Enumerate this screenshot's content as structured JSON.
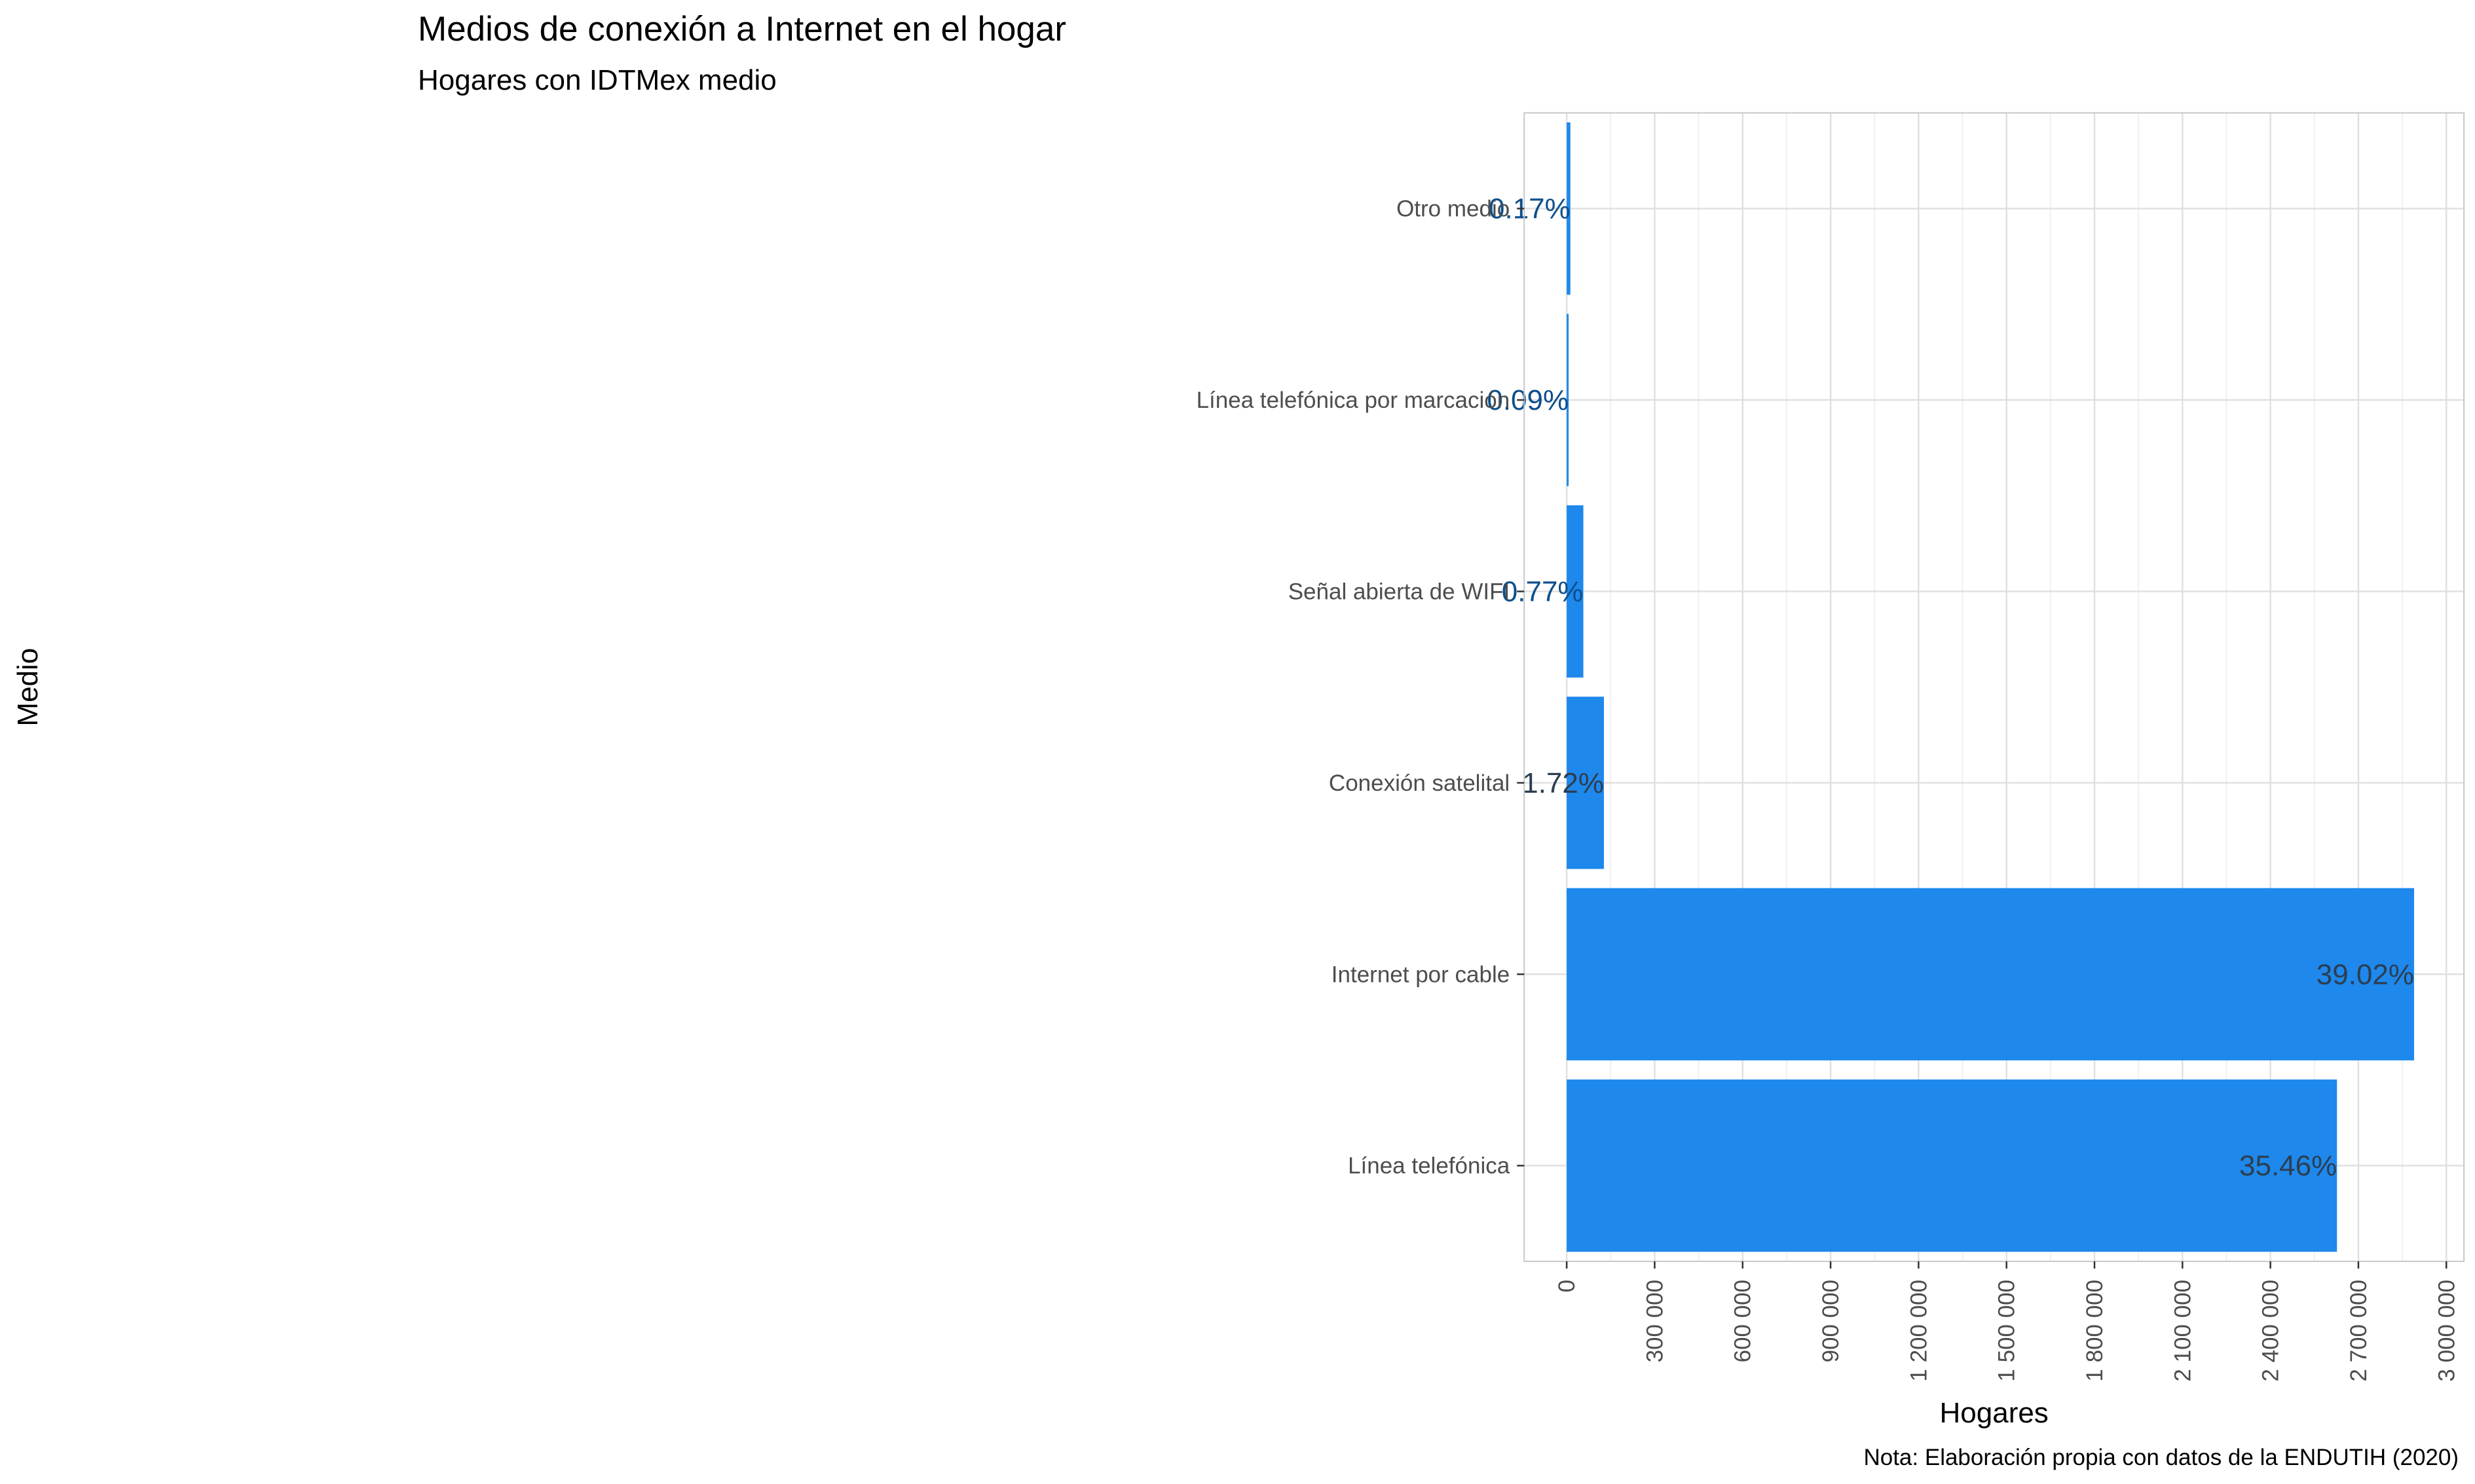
{
  "chart_data": {
    "type": "bar",
    "orientation": "horizontal",
    "title": "Medios de conexión a Internet en el hogar",
    "subtitle": "Hogares con IDTMex medio",
    "xlabel": "Hogares",
    "ylabel": "Medio",
    "caption": "Nota: Elaboración propia con datos de la ENDUTIH (2020)",
    "categories": [
      "Otro medio",
      "Línea telefónica por marcación",
      "Señal abierta de WIFI",
      "Conexión satelital",
      "Internet por cable",
      "Línea telefónica"
    ],
    "values": [
      12600,
      6700,
      56800,
      127000,
      2890000,
      2627000
    ],
    "data_labels": [
      "0.17%",
      "0.09%",
      "0.77%",
      "1.72%",
      "39.02%",
      "35.46%"
    ],
    "xlim": [
      -145000,
      3060000
    ],
    "x_ticks": [
      0,
      300000,
      600000,
      900000,
      1200000,
      1500000,
      1800000,
      2100000,
      2400000,
      2700000,
      3000000
    ],
    "x_tick_labels": [
      "0",
      "300 000",
      "600 000",
      "900 000",
      "1 200 000",
      "1 500 000",
      "1 800 000",
      "2 100 000",
      "2 400 000",
      "2 700 000",
      "3 000 000"
    ],
    "grid": true,
    "colors": {
      "bar": "#1e88ec",
      "label_outside": "#0d4f8c",
      "label_inside": "#2c3e50",
      "grid_major": "#e0e0e0",
      "grid_minor": "#f0f0f0",
      "panel_border": "#c8c8c8"
    }
  }
}
